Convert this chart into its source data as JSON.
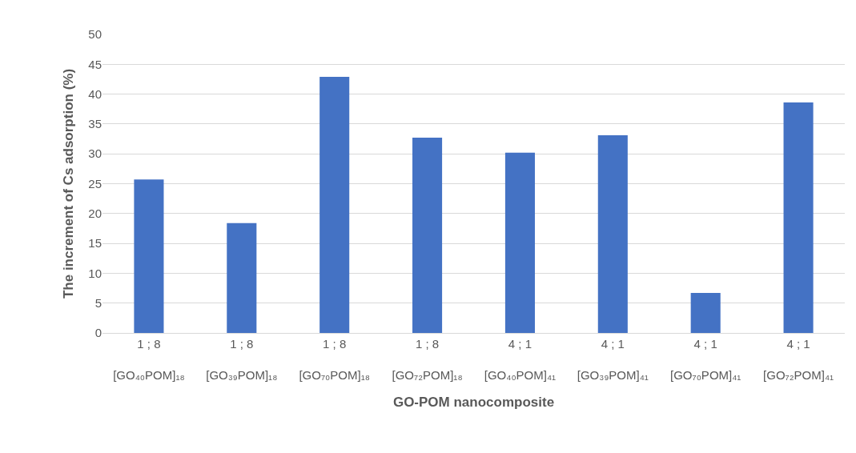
{
  "chart_data": {
    "type": "bar",
    "xlabel": "GO-POM nanocomposite",
    "ylabel": "The increment of Cs adsorption (%)",
    "categories": [
      "1 ; 8\n\n[GO₄₀POM]₁₈",
      "1 ; 8\n\n[GO₃₉POM]₁₈",
      "1 ; 8\n\n[GO₇₀POM]₁₈",
      "1 ; 8\n\n[GO₇₂POM]₁₈",
      "4 ; 1\n\n[GO₄₀POM]₄₁",
      "4 ; 1\n\n[GO₃₉POM]₄₁",
      "4 ; 1\n\n[GO₇₀POM]₄₁",
      "4 ; 1\n\n[GO₇₂POM]₄₁"
    ],
    "values": [
      25.7,
      18.4,
      42.9,
      32.7,
      30.2,
      33.1,
      6.7,
      38.6
    ],
    "color": "#4472c4",
    "ylim": [
      0,
      50
    ],
    "yticks": [
      0,
      5,
      10,
      15,
      20,
      25,
      30,
      35,
      40,
      45,
      50
    ],
    "grid": "y"
  }
}
